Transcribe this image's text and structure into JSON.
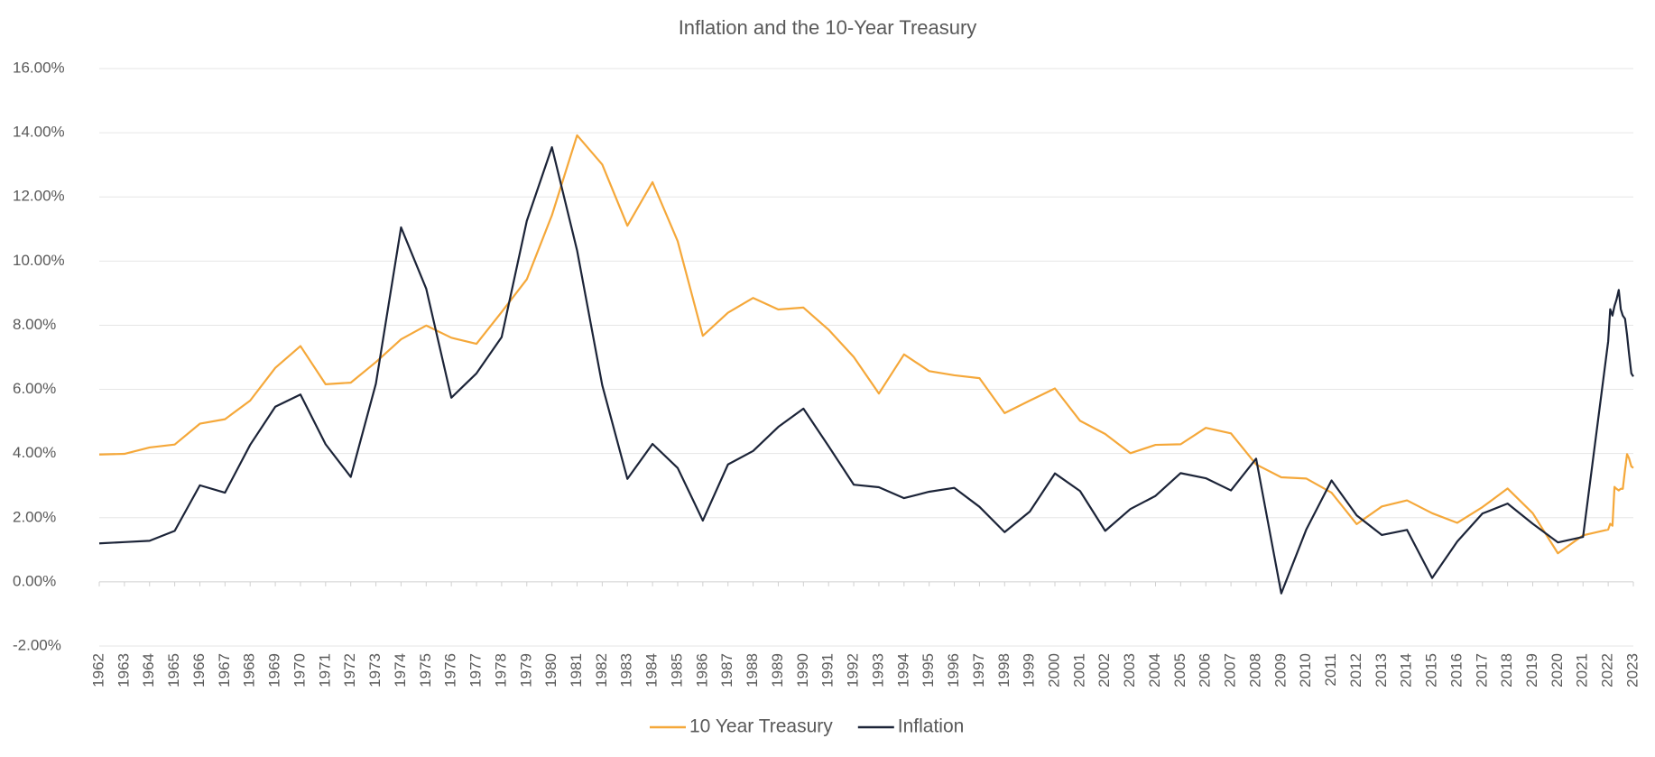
{
  "chart_data": {
    "type": "line",
    "title": "Inflation and the 10-Year Treasury",
    "x": [
      1962,
      1963,
      1964,
      1965,
      1966,
      1967,
      1968,
      1969,
      1970,
      1971,
      1972,
      1973,
      1974,
      1975,
      1976,
      1977,
      1978,
      1979,
      1980,
      1981,
      1982,
      1983,
      1984,
      1985,
      1986,
      1987,
      1988,
      1989,
      1990,
      1991,
      1992,
      1993,
      1994,
      1995,
      1996,
      1997,
      1998,
      1999,
      2000,
      2001,
      2002,
      2003,
      2004,
      2005,
      2006,
      2007,
      2008,
      2009,
      2010,
      2011,
      2012,
      2013,
      2014,
      2015,
      2016,
      2017,
      2018,
      2019,
      2020,
      2021,
      2022,
      2022.08,
      2022.17,
      2022.25,
      2022.33,
      2022.42,
      2022.5,
      2022.58,
      2022.67,
      2022.75,
      2022.83,
      2022.92,
      2023
    ],
    "series": [
      {
        "name": "10 Year Treasury",
        "color": "#f5a83a",
        "values": [
          3.97,
          3.99,
          4.19,
          4.28,
          4.93,
          5.07,
          5.65,
          6.67,
          7.35,
          6.16,
          6.21,
          6.85,
          7.56,
          7.99,
          7.61,
          7.42,
          8.41,
          9.43,
          11.43,
          13.92,
          13.01,
          11.1,
          12.46,
          10.62,
          7.67,
          8.39,
          8.85,
          8.49,
          8.55,
          7.86,
          7.01,
          5.87,
          7.09,
          6.57,
          6.44,
          6.35,
          5.26,
          5.65,
          6.03,
          5.02,
          4.61,
          4.01,
          4.27,
          4.29,
          4.8,
          4.63,
          3.66,
          3.26,
          3.22,
          2.78,
          1.8,
          2.35,
          2.54,
          2.14,
          1.84,
          2.33,
          2.91,
          2.14,
          0.89,
          1.45,
          1.63,
          1.81,
          1.75,
          2.96,
          2.9,
          2.85,
          2.9,
          2.9,
          3.5,
          3.98,
          3.85,
          3.6,
          3.55
        ]
      },
      {
        "name": "Inflation",
        "color": "#1c2438",
        "values": [
          1.2,
          1.24,
          1.28,
          1.59,
          3.01,
          2.78,
          4.27,
          5.46,
          5.84,
          4.29,
          3.27,
          6.18,
          11.05,
          9.14,
          5.74,
          6.5,
          7.63,
          11.25,
          13.55,
          10.33,
          6.13,
          3.21,
          4.3,
          3.55,
          1.91,
          3.66,
          4.08,
          4.83,
          5.4,
          4.23,
          3.03,
          2.95,
          2.61,
          2.81,
          2.93,
          2.34,
          1.55,
          2.19,
          3.38,
          2.83,
          1.59,
          2.27,
          2.68,
          3.39,
          3.23,
          2.85,
          3.84,
          -0.36,
          1.64,
          3.16,
          2.07,
          1.46,
          1.62,
          0.12,
          1.26,
          2.13,
          2.44,
          1.81,
          1.23,
          1.4,
          7.5,
          8.5,
          8.3,
          8.6,
          8.8,
          9.1,
          8.5,
          8.3,
          8.2,
          7.7,
          7.1,
          6.5,
          6.4
        ]
      }
    ],
    "xlim": [
      1962,
      2023
    ],
    "xticks": [
      1962,
      1963,
      1964,
      1965,
      1966,
      1967,
      1968,
      1969,
      1970,
      1971,
      1972,
      1973,
      1974,
      1975,
      1976,
      1977,
      1978,
      1979,
      1980,
      1981,
      1982,
      1983,
      1984,
      1985,
      1986,
      1987,
      1988,
      1989,
      1990,
      1991,
      1992,
      1993,
      1994,
      1995,
      1996,
      1997,
      1998,
      1999,
      2000,
      2001,
      2002,
      2003,
      2004,
      2005,
      2006,
      2007,
      2008,
      2009,
      2010,
      2011,
      2012,
      2013,
      2014,
      2015,
      2016,
      2017,
      2018,
      2019,
      2020,
      2021,
      2022,
      2023
    ],
    "ylim": [
      -2,
      16
    ],
    "yticks": [
      {
        "value": -2,
        "label": "-2.00%"
      },
      {
        "value": 0,
        "label": "0.00%"
      },
      {
        "value": 2,
        "label": "2.00%"
      },
      {
        "value": 4,
        "label": "4.00%"
      },
      {
        "value": 6,
        "label": "6.00%"
      },
      {
        "value": 8,
        "label": "8.00%"
      },
      {
        "value": 10,
        "label": "10.00%"
      },
      {
        "value": 12,
        "label": "12.00%"
      },
      {
        "value": 14,
        "label": "14.00%"
      },
      {
        "value": 16,
        "label": "16.00%"
      }
    ],
    "grid": true,
    "legend": "bottom"
  }
}
